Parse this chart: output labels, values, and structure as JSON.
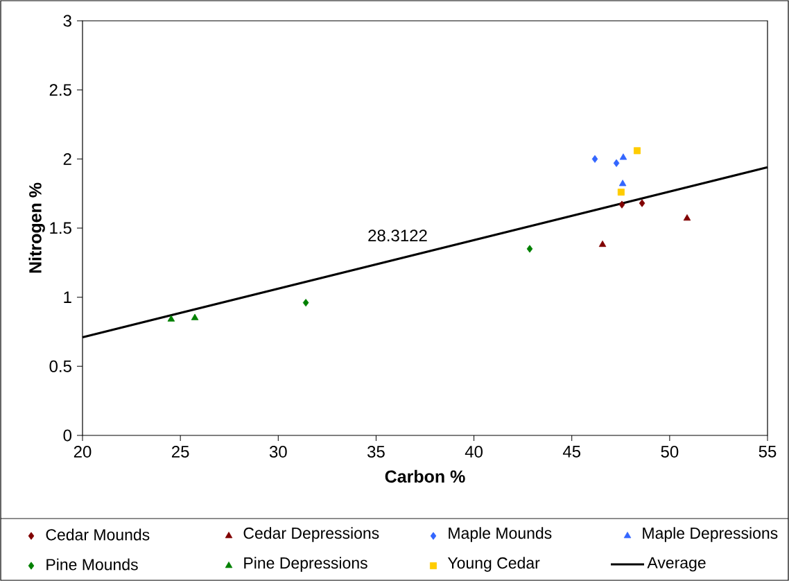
{
  "chart_data": {
    "type": "scatter",
    "xlabel": "Carbon %",
    "ylabel": "Nitrogen %",
    "xlim": [
      20,
      55
    ],
    "xticks": [
      20,
      25,
      30,
      35,
      40,
      45,
      50,
      55
    ],
    "ylim": [
      0,
      3
    ],
    "yticks": [
      0,
      0.5,
      1,
      1.5,
      2,
      2.5,
      3
    ],
    "grid": false,
    "legend": "bottom",
    "annotations": [
      "28.3122"
    ],
    "series": [
      {
        "name": "Cedar Mounds",
        "color": "#800000",
        "marker": "diamond",
        "x": [
          47.56,
          48.59
        ],
        "values": [
          1.67,
          1.68
        ]
      },
      {
        "name": "Cedar Depressions",
        "color": "#800000",
        "marker": "triangle",
        "x": [
          46.57,
          50.89
        ],
        "values": [
          1.38,
          1.57
        ]
      },
      {
        "name": "Maple Mounds",
        "color": "#3366ff",
        "marker": "diamond",
        "x": [
          46.18,
          47.28
        ],
        "values": [
          2.0,
          1.97
        ]
      },
      {
        "name": "Maple Depressions",
        "color": "#3366ff",
        "marker": "triangle",
        "x": [
          47.63,
          47.6
        ],
        "values": [
          2.01,
          1.82
        ]
      },
      {
        "name": "Pine Mounds",
        "color": "#008000",
        "marker": "diamond",
        "x": [
          31.41,
          42.85
        ],
        "values": [
          0.96,
          1.35
        ]
      },
      {
        "name": "Pine Depressions",
        "color": "#008000",
        "marker": "triangle",
        "x": [
          24.53,
          25.74
        ],
        "values": [
          0.84,
          0.85
        ]
      },
      {
        "name": "Young Cedar",
        "color": "#ffcc00",
        "marker": "square",
        "x": [
          48.34,
          47.52
        ],
        "values": [
          2.06,
          1.76
        ]
      },
      {
        "name": "Average",
        "type": "line",
        "color": "#000000",
        "marker": "none",
        "line_style": "solid",
        "x": [
          20,
          55
        ],
        "values": [
          0.71,
          1.94
        ]
      }
    ]
  }
}
